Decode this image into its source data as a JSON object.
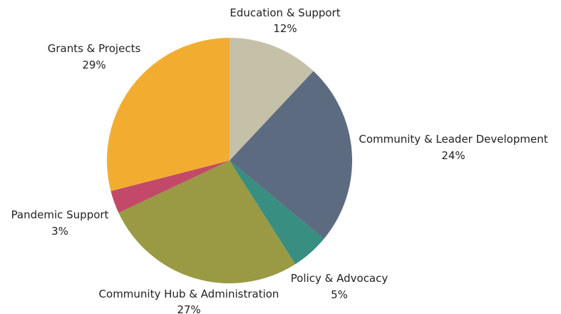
{
  "chart_data": {
    "type": "pie",
    "title": "",
    "start": "12 o'clock",
    "direction": "clockwise",
    "slices": [
      {
        "label": "Education & Support",
        "percent_label": "12%",
        "value": 12,
        "color": "#c5c0a8"
      },
      {
        "label": "Community & Leader Development",
        "percent_label": "24%",
        "value": 24,
        "color": "#5c6b80"
      },
      {
        "label": "Policy & Advocacy",
        "percent_label": "5%",
        "value": 5,
        "color": "#378e81"
      },
      {
        "label": "Community Hub & Administration",
        "percent_label": "27%",
        "value": 27,
        "color": "#999a43"
      },
      {
        "label": "Pandemic Support",
        "percent_label": "3%",
        "value": 3,
        "color": "#c24a68"
      },
      {
        "label": "Grants & Projects",
        "percent_label": "29%",
        "value": 29,
        "color": "#f2ad31"
      }
    ]
  }
}
